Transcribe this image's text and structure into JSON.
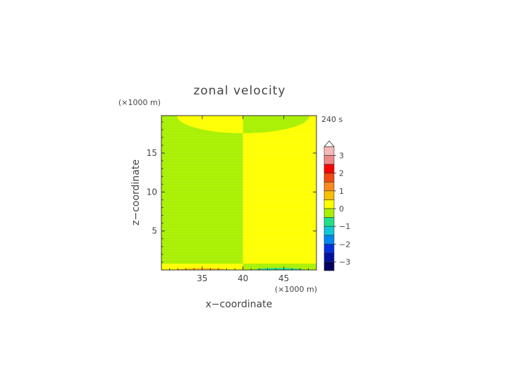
{
  "chart_data": {
    "type": "heatmap",
    "title": "zonal velocity",
    "xlabel": "x−coordinate",
    "ylabel": "z−coordinate",
    "x_unit": "(×1000 m)",
    "y_unit": "(×1000 m)",
    "time_label": "240 s",
    "xlim": [
      30,
      49
    ],
    "ylim": [
      0,
      19.8
    ],
    "x_ticks": [
      "35",
      "40",
      "45"
    ],
    "x_tick_values": [
      35,
      40,
      45
    ],
    "y_ticks": [
      "5",
      "10",
      "15"
    ],
    "y_tick_values": [
      5,
      10,
      15
    ],
    "colorbar": {
      "tick_labels": [
        "3",
        "2",
        "1",
        "0",
        "−1",
        "−2",
        "−3"
      ],
      "tick_values": [
        3,
        2,
        1,
        0,
        -1,
        -2,
        -3
      ],
      "bands": [
        {
          "from": 3.0,
          "to": 3.5,
          "color": "#f7b8b8"
        },
        {
          "from": 2.5,
          "to": 3.0,
          "color": "#f08888"
        },
        {
          "from": 2.0,
          "to": 2.5,
          "color": "#ff0000"
        },
        {
          "from": 1.5,
          "to": 2.0,
          "color": "#f24a10"
        },
        {
          "from": 1.0,
          "to": 1.5,
          "color": "#f98a1c"
        },
        {
          "from": 0.5,
          "to": 1.0,
          "color": "#f8c000"
        },
        {
          "from": 0.0,
          "to": 0.5,
          "color": "#ffff00"
        },
        {
          "from": -0.5,
          "to": 0.0,
          "color": "#a8f000"
        },
        {
          "from": -1.0,
          "to": -0.5,
          "color": "#20e088"
        },
        {
          "from": -1.5,
          "to": -1.0,
          "color": "#10c8d8"
        },
        {
          "from": -2.0,
          "to": -1.5,
          "color": "#0088f0"
        },
        {
          "from": -2.5,
          "to": -2.0,
          "color": "#0030e0"
        },
        {
          "from": -3.0,
          "to": -2.5,
          "color": "#0010a0"
        },
        {
          "from": -3.5,
          "to": -3.0,
          "color": "#000060"
        }
      ],
      "extend": "max"
    },
    "field": {
      "upper_left_color": "#a8f000",
      "upper_right_color": "#ffff00",
      "cap_color_left_half": "#ffff00",
      "cap_color_right_half": "#a8f000",
      "bottom_left_layer_colors": [
        "#f8c000",
        "#ffff00"
      ],
      "bottom_right_layer_colors": [
        "#20e088",
        "#a8f000"
      ],
      "divide_x": 40
    }
  }
}
